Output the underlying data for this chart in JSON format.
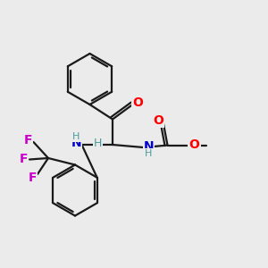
{
  "background_color": "#ebebeb",
  "bond_color": "#1a1a1a",
  "atom_colors": {
    "O": "#ff0000",
    "N": "#0000cc",
    "F": "#cc00cc",
    "H": "#4a9a9a",
    "C": "#1a1a1a"
  },
  "figsize": [
    3.0,
    3.0
  ],
  "dpi": 100
}
